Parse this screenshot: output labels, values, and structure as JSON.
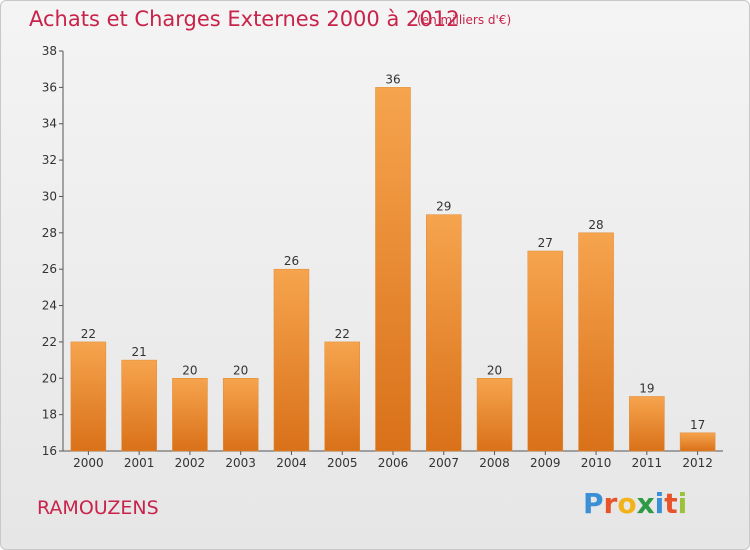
{
  "header": {
    "title": "Achats et Charges Externes 2000 à 2012",
    "unit": "(en milliers d'€)"
  },
  "footer": {
    "location": "RAMOUZENS",
    "brand": "Proxiti"
  },
  "colors": {
    "title": "#c8234a",
    "bar_top": "#f6a44e",
    "bar_bottom": "#d97119"
  },
  "chart_data": {
    "type": "bar",
    "title": "Achats et Charges Externes 2000 à 2012",
    "subtitle": "(en milliers d'€)",
    "categories": [
      "2000",
      "2001",
      "2002",
      "2003",
      "2004",
      "2005",
      "2006",
      "2007",
      "2008",
      "2009",
      "2010",
      "2011",
      "2012"
    ],
    "values": [
      22,
      21,
      20,
      20,
      26,
      22,
      36,
      29,
      20,
      27,
      28,
      19,
      17
    ],
    "yticks": [
      16,
      18,
      20,
      22,
      24,
      26,
      28,
      30,
      32,
      34,
      36,
      38
    ],
    "ylim": [
      16,
      38
    ],
    "grid": false,
    "xlabel": "",
    "ylabel": ""
  }
}
